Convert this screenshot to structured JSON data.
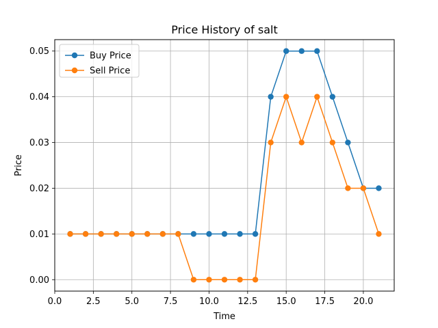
{
  "chart_data": {
    "type": "line",
    "title": "Price History of salt",
    "xlabel": "Time",
    "ylabel": "Price",
    "xlim": [
      0.0,
      22.0
    ],
    "ylim": [
      -0.0025,
      0.0525
    ],
    "xticks": [
      0.0,
      2.5,
      5.0,
      7.5,
      10.0,
      12.5,
      15.0,
      17.5,
      20.0
    ],
    "xtick_labels": [
      "0.0",
      "2.5",
      "5.0",
      "7.5",
      "10.0",
      "12.5",
      "15.0",
      "17.5",
      "20.0"
    ],
    "yticks": [
      0.0,
      0.01,
      0.02,
      0.03,
      0.04,
      0.05
    ],
    "ytick_labels": [
      "0.00",
      "0.01",
      "0.02",
      "0.03",
      "0.04",
      "0.05"
    ],
    "grid": true,
    "legend_position": "top-left",
    "x": [
      1,
      2,
      3,
      4,
      5,
      6,
      7,
      8,
      9,
      10,
      11,
      12,
      13,
      14,
      15,
      16,
      17,
      18,
      19,
      20,
      21
    ],
    "series": [
      {
        "name": "Buy Price",
        "color": "#1f77b4",
        "values": [
          0.01,
          0.01,
          0.01,
          0.01,
          0.01,
          0.01,
          0.01,
          0.01,
          0.01,
          0.01,
          0.01,
          0.01,
          0.01,
          0.04,
          0.05,
          0.05,
          0.05,
          0.04,
          0.03,
          0.02,
          0.02
        ]
      },
      {
        "name": "Sell Price",
        "color": "#ff7f0e",
        "values": [
          0.01,
          0.01,
          0.01,
          0.01,
          0.01,
          0.01,
          0.01,
          0.01,
          0.0,
          0.0,
          0.0,
          0.0,
          0.0,
          0.03,
          0.04,
          0.03,
          0.04,
          0.03,
          0.02,
          0.02,
          0.01
        ]
      }
    ]
  }
}
